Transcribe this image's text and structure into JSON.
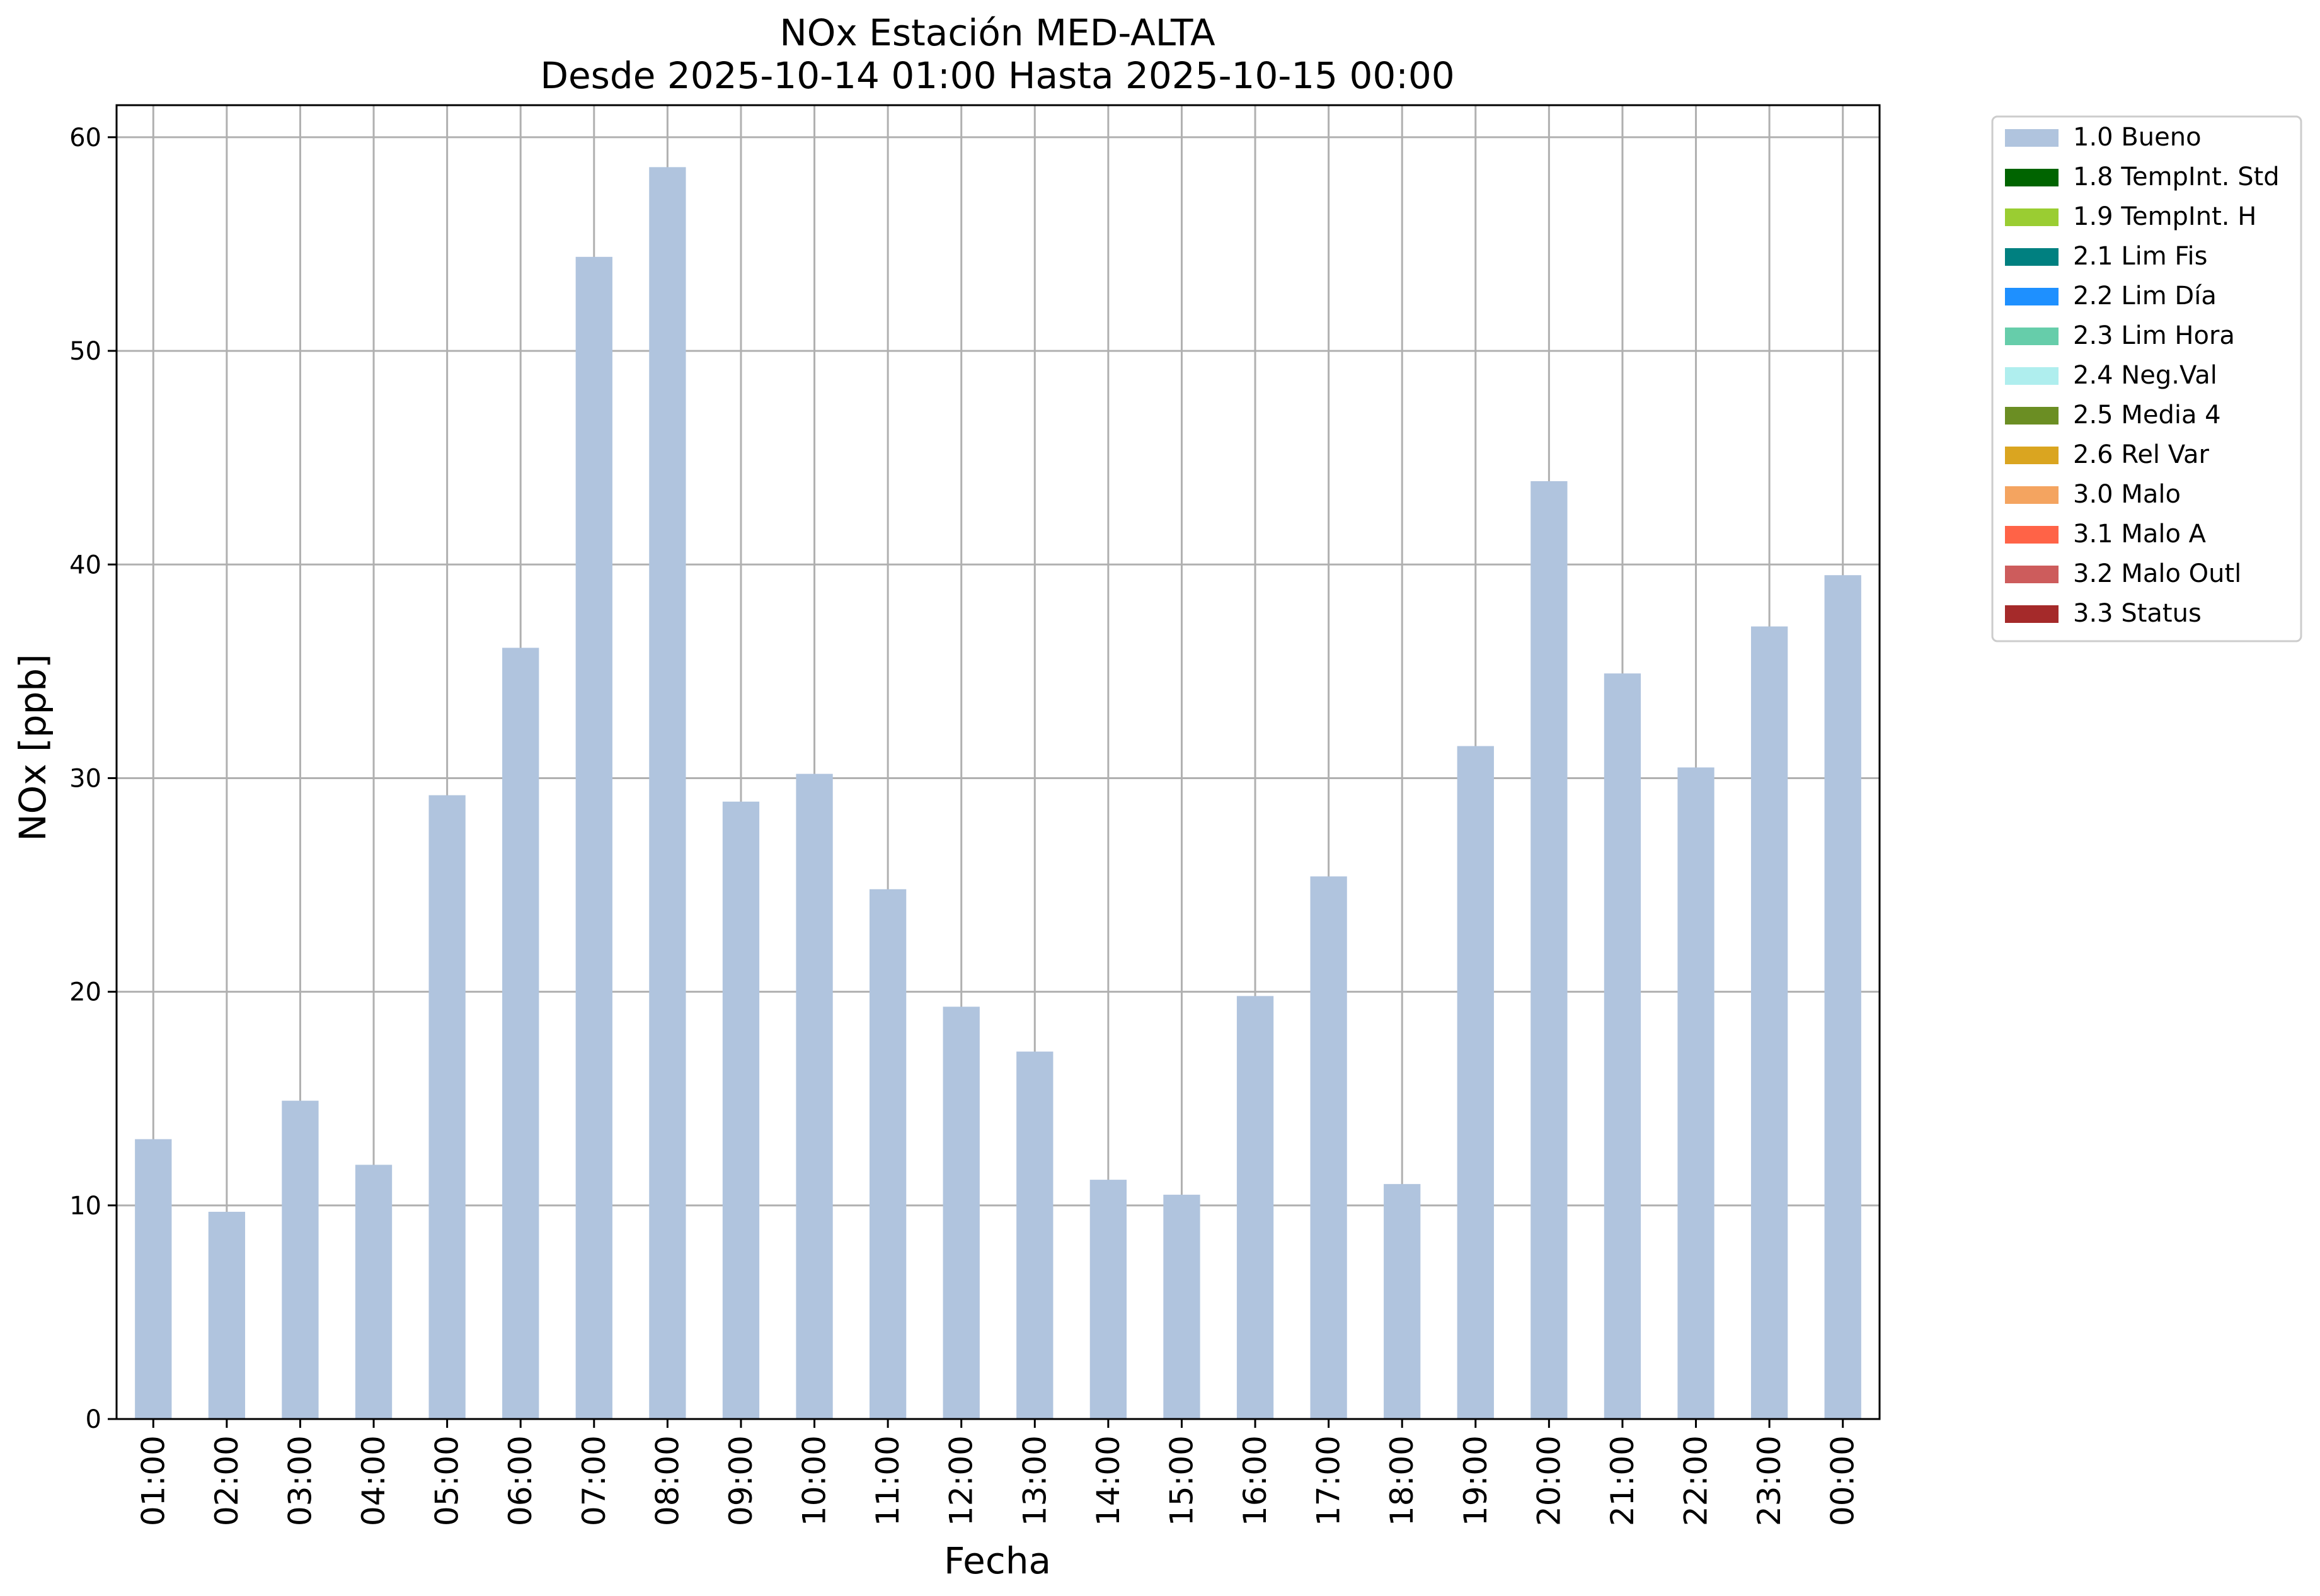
{
  "chart_data": {
    "type": "bar",
    "title": "NOx Estación MED-ALTA",
    "subtitle": "Desde 2025-10-14 01:00 Hasta 2025-10-15 00:00",
    "xlabel": "Fecha",
    "ylabel": "NOx [ppb]",
    "ylim": [
      0,
      61.5
    ],
    "yticks": [
      0,
      10,
      20,
      30,
      40,
      50,
      60
    ],
    "grid": true,
    "legend_position": "outside-top-right",
    "bar_color": "#b0c4de",
    "categories": [
      "01:00",
      "02:00",
      "03:00",
      "04:00",
      "05:00",
      "06:00",
      "07:00",
      "08:00",
      "09:00",
      "10:00",
      "11:00",
      "12:00",
      "13:00",
      "14:00",
      "15:00",
      "16:00",
      "17:00",
      "18:00",
      "19:00",
      "20:00",
      "21:00",
      "22:00",
      "23:00",
      "00:00"
    ],
    "series": [
      {
        "name": "1.0 Bueno",
        "color": "#b0c4de",
        "values": [
          13.1,
          9.7,
          14.9,
          11.9,
          29.2,
          36.1,
          54.4,
          58.6,
          28.9,
          30.2,
          24.8,
          19.3,
          17.2,
          11.2,
          10.5,
          19.8,
          25.4,
          11.0,
          31.5,
          43.9,
          34.9,
          30.5,
          37.1,
          39.5
        ]
      }
    ],
    "legend": [
      {
        "label": "1.0 Bueno",
        "color": "#b0c4de"
      },
      {
        "label": "1.8 TempInt. Std",
        "color": "#006400"
      },
      {
        "label": "1.9 TempInt. H",
        "color": "#9acd32"
      },
      {
        "label": "2.1 Lim Fis",
        "color": "#008080"
      },
      {
        "label": "2.2 Lim Día",
        "color": "#1e90ff"
      },
      {
        "label": "2.3 Lim Hora",
        "color": "#66cdaa"
      },
      {
        "label": "2.4 Neg.Val",
        "color": "#afeeee"
      },
      {
        "label": "2.5 Media 4",
        "color": "#6b8e23"
      },
      {
        "label": "2.6 Rel Var",
        "color": "#daa520"
      },
      {
        "label": "3.0 Malo",
        "color": "#f4a460"
      },
      {
        "label": "3.1 Malo A",
        "color": "#ff6347"
      },
      {
        "label": "3.2 Malo Outl",
        "color": "#cd5c5c"
      },
      {
        "label": "3.3 Status",
        "color": "#a52a2a"
      }
    ]
  }
}
